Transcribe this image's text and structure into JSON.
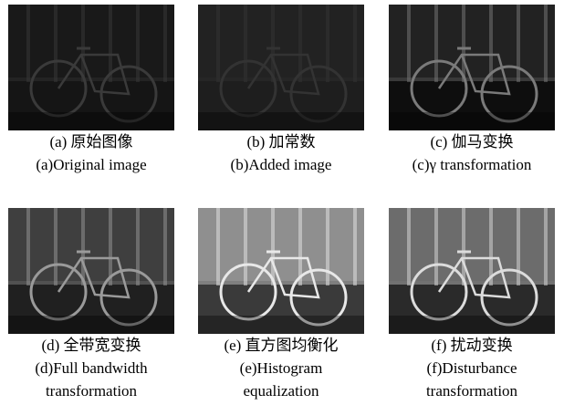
{
  "panels": [
    {
      "caption_cn": "(a) 原始图像",
      "caption_en": [
        "(a)Original image"
      ]
    },
    {
      "caption_cn": "(b) 加常数",
      "caption_en": [
        "(b)Added image"
      ]
    },
    {
      "caption_cn": "(c) 伽马变换",
      "caption_en": [
        "(c)γ transformation"
      ]
    },
    {
      "caption_cn": "(d) 全带宽变换",
      "caption_en": [
        "(d)Full bandwidth",
        "transformation"
      ]
    },
    {
      "caption_cn": "(e) 直方图均衡化",
      "caption_en": [
        "(e)Histogram",
        "equalization"
      ]
    },
    {
      "caption_cn": "(f) 扰动变换",
      "caption_en": [
        "(f)Disturbance",
        "transformation"
      ]
    }
  ]
}
